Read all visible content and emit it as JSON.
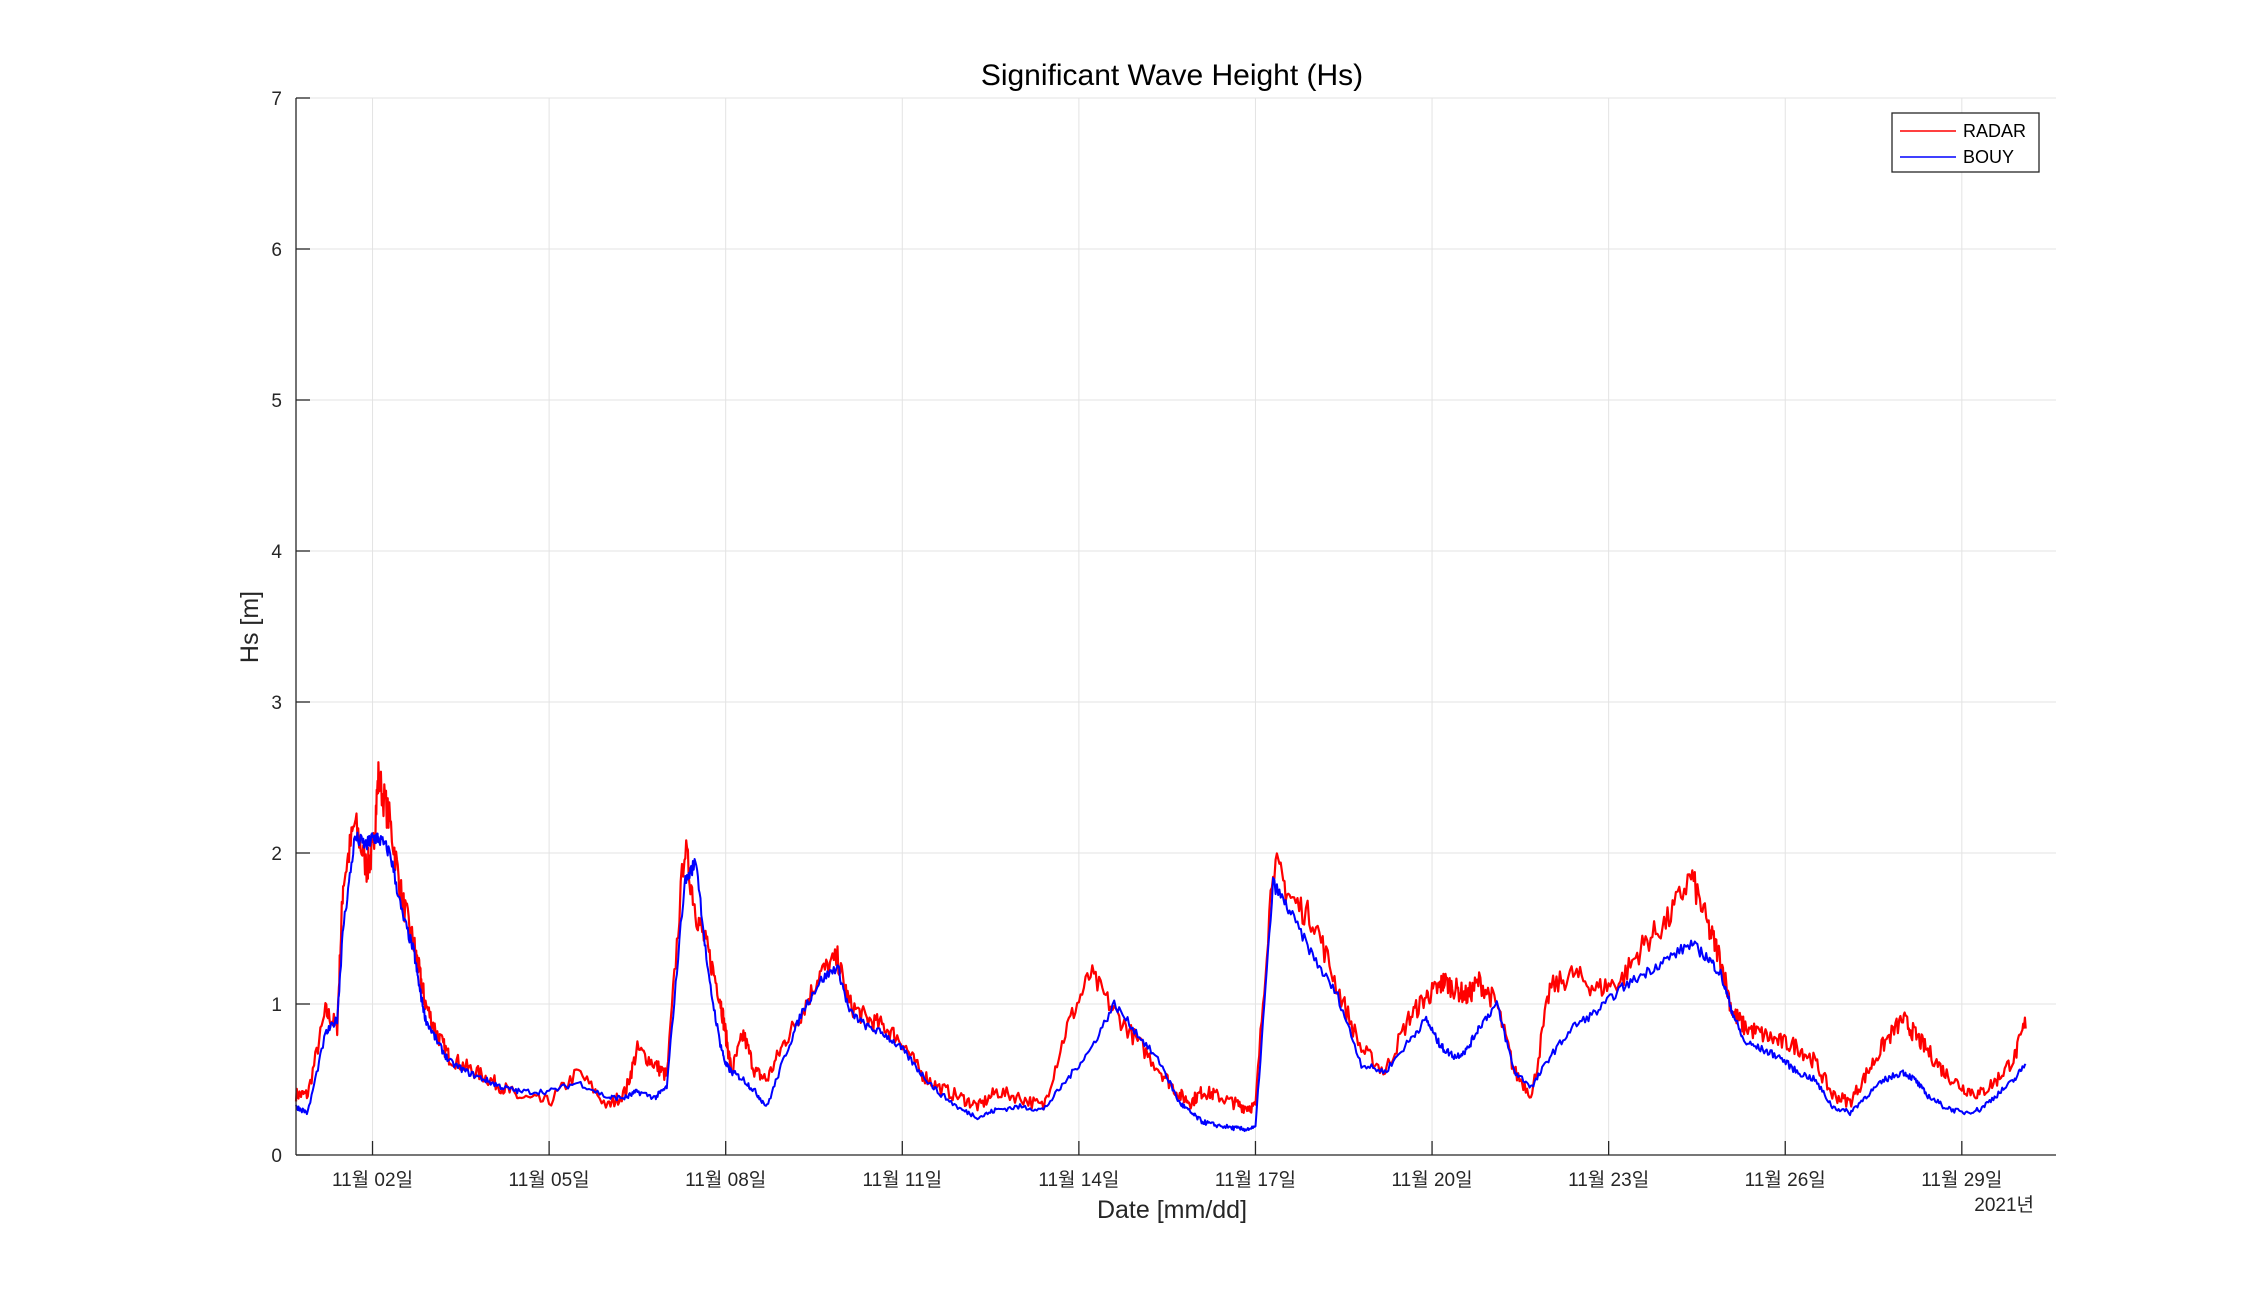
{
  "chart_data": {
    "type": "line",
    "title": "Significant Wave Height (Hs)",
    "xlabel": "Date [mm/dd]",
    "ylabel": "Hs [m]",
    "x_secondary_label": "2021년",
    "ylim": [
      0,
      7
    ],
    "xlim_days": [
      0.7,
      30.6
    ],
    "grid": true,
    "legend_position": "top-right",
    "yticks": [
      0,
      1,
      2,
      3,
      4,
      5,
      6,
      7
    ],
    "xticks": [
      {
        "day": 2,
        "label": "11월 02일"
      },
      {
        "day": 5,
        "label": "11월 05일"
      },
      {
        "day": 8,
        "label": "11월 08일"
      },
      {
        "day": 11,
        "label": "11월 11일"
      },
      {
        "day": 14,
        "label": "11월 14일"
      },
      {
        "day": 17,
        "label": "11월 17일"
      },
      {
        "day": 20,
        "label": "11월 20일"
      },
      {
        "day": 23,
        "label": "11월 23일"
      },
      {
        "day": 26,
        "label": "11월 26일"
      },
      {
        "day": 29,
        "label": "11월 29일"
      }
    ],
    "series": [
      {
        "name": "RADAR",
        "color": "#ff0000",
        "x_day_of_november": [
          0.7,
          0.9,
          1.2,
          1.4,
          1.5,
          1.7,
          1.9,
          2.0,
          2.1,
          2.3,
          2.5,
          2.7,
          2.8,
          2.9,
          3.1,
          3.3,
          3.6,
          3.9,
          4.2,
          4.5,
          5.0,
          5.5,
          6.0,
          6.3,
          6.5,
          6.8,
          7.0,
          7.3,
          7.5,
          7.7,
          7.9,
          8.0,
          8.1,
          8.3,
          8.5,
          8.7,
          9.0,
          9.3,
          9.6,
          9.9,
          10.1,
          10.4,
          10.7,
          11.0,
          11.3,
          11.6,
          12.0,
          12.3,
          12.6,
          13.0,
          13.4,
          13.8,
          14.2,
          14.6,
          15.0,
          15.4,
          15.7,
          15.9,
          16.1,
          16.3,
          16.6,
          16.8,
          17.0,
          17.3,
          17.6,
          18.0,
          18.4,
          18.8,
          19.2,
          19.6,
          19.9,
          20.1,
          20.2,
          20.4,
          20.6,
          20.8,
          21.1,
          21.4,
          21.7,
          22.0,
          22.4,
          22.8,
          23.2,
          23.6,
          24.0,
          24.4,
          24.7,
          24.9,
          25.1,
          25.3,
          25.6,
          25.9,
          26.2,
          26.5,
          26.8,
          27.1,
          27.4,
          27.7,
          28.0,
          28.2,
          28.4,
          28.7,
          29.0,
          29.3,
          29.6,
          29.9,
          30.1,
          30.3,
          30.6
        ],
        "values": [
          0.4,
          0.4,
          0.95,
          0.85,
          1.8,
          2.2,
          1.9,
          2.0,
          2.5,
          2.2,
          1.7,
          1.4,
          1.2,
          1.0,
          0.8,
          0.65,
          0.58,
          0.52,
          0.45,
          0.38,
          0.35,
          0.55,
          0.32,
          0.42,
          0.7,
          0.6,
          0.52,
          2.05,
          1.6,
          1.35,
          1.05,
          0.8,
          0.55,
          0.8,
          0.55,
          0.5,
          0.75,
          0.95,
          1.2,
          1.3,
          1.0,
          0.9,
          0.85,
          0.75,
          0.55,
          0.45,
          0.38,
          0.32,
          0.42,
          0.38,
          0.32,
          0.85,
          1.2,
          0.95,
          0.75,
          0.55,
          0.4,
          0.35,
          0.42,
          0.4,
          0.35,
          0.32,
          0.32,
          1.95,
          1.7,
          1.55,
          1.1,
          0.7,
          0.55,
          0.9,
          1.05,
          1.1,
          1.15,
          1.1,
          1.05,
          1.15,
          1.0,
          0.55,
          0.4,
          1.1,
          1.2,
          1.1,
          1.15,
          1.4,
          1.55,
          1.85,
          1.5,
          1.3,
          0.95,
          0.85,
          0.8,
          0.75,
          0.72,
          0.62,
          0.4,
          0.35,
          0.55,
          0.75,
          0.9,
          0.8,
          0.7,
          0.55,
          0.45,
          0.4,
          0.5,
          0.65,
          0.9
        ]
      },
      {
        "name": "BOUY",
        "color": "#0000ff",
        "x_day_of_november": [
          0.7,
          0.9,
          1.2,
          1.4,
          1.5,
          1.7,
          1.9,
          2.0,
          2.1,
          2.3,
          2.5,
          2.7,
          2.8,
          2.9,
          3.1,
          3.3,
          3.6,
          3.9,
          4.2,
          4.5,
          5.0,
          5.5,
          6.0,
          6.3,
          6.5,
          6.8,
          7.0,
          7.3,
          7.5,
          7.7,
          7.9,
          8.0,
          8.1,
          8.3,
          8.5,
          8.7,
          9.0,
          9.3,
          9.6,
          9.9,
          10.1,
          10.4,
          10.7,
          11.0,
          11.3,
          11.6,
          12.0,
          12.3,
          12.6,
          13.0,
          13.4,
          13.8,
          14.2,
          14.6,
          15.0,
          15.4,
          15.7,
          15.9,
          16.1,
          16.3,
          16.6,
          16.8,
          17.0,
          17.3,
          17.6,
          18.0,
          18.4,
          18.8,
          19.2,
          19.6,
          19.9,
          20.1,
          20.2,
          20.4,
          20.6,
          20.8,
          21.1,
          21.4,
          21.7,
          22.0,
          22.4,
          22.8,
          23.2,
          23.6,
          24.0,
          24.4,
          24.7,
          24.9,
          25.1,
          25.3,
          25.6,
          25.9,
          26.2,
          26.5,
          26.8,
          27.1,
          27.4,
          27.7,
          28.0,
          28.2,
          28.4,
          28.7,
          29.0,
          29.3,
          29.6,
          29.9,
          30.1,
          30.3,
          30.6
        ],
        "values": [
          0.32,
          0.28,
          0.8,
          0.9,
          1.5,
          2.1,
          2.05,
          2.1,
          2.1,
          2.0,
          1.6,
          1.35,
          1.1,
          0.9,
          0.75,
          0.62,
          0.55,
          0.5,
          0.45,
          0.42,
          0.42,
          0.48,
          0.38,
          0.38,
          0.42,
          0.38,
          0.45,
          1.8,
          1.95,
          1.2,
          0.75,
          0.6,
          0.55,
          0.5,
          0.42,
          0.32,
          0.65,
          0.95,
          1.15,
          1.25,
          0.95,
          0.85,
          0.8,
          0.7,
          0.55,
          0.42,
          0.3,
          0.25,
          0.3,
          0.32,
          0.3,
          0.5,
          0.7,
          1.0,
          0.8,
          0.6,
          0.35,
          0.28,
          0.22,
          0.2,
          0.18,
          0.17,
          0.18,
          1.8,
          1.6,
          1.3,
          1.05,
          0.6,
          0.55,
          0.75,
          0.9,
          0.75,
          0.7,
          0.65,
          0.7,
          0.85,
          1.0,
          0.55,
          0.45,
          0.65,
          0.85,
          0.95,
          1.1,
          1.2,
          1.3,
          1.4,
          1.3,
          1.2,
          0.95,
          0.75,
          0.7,
          0.65,
          0.55,
          0.5,
          0.32,
          0.28,
          0.4,
          0.5,
          0.55,
          0.5,
          0.4,
          0.32,
          0.28,
          0.3,
          0.4,
          0.5,
          0.62
        ]
      }
    ]
  }
}
